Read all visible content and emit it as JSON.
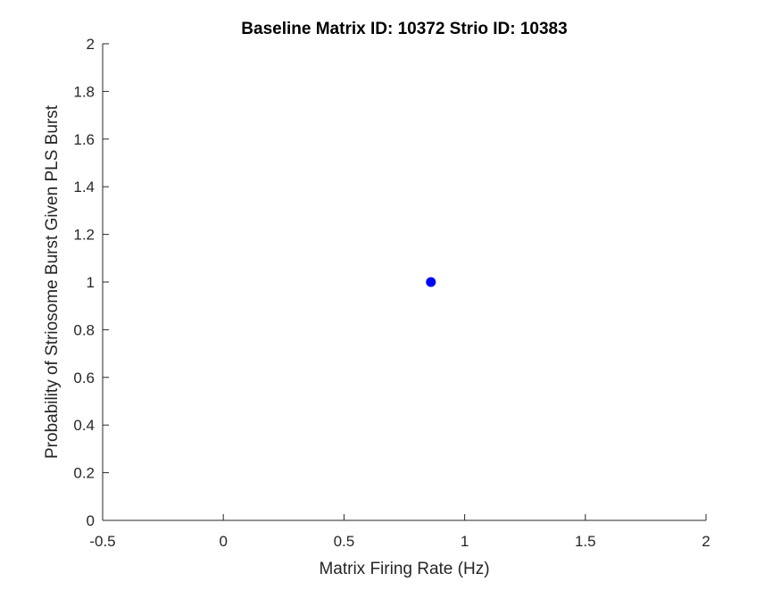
{
  "chart_data": {
    "type": "scatter",
    "title": "Baseline Matrix ID: 10372 Strio ID: 10383",
    "xlabel": "Matrix Firing Rate (Hz)",
    "ylabel": "Probability of Striosome Burst Given PLS Burst",
    "xlim": [
      -0.5,
      2
    ],
    "ylim": [
      0,
      2
    ],
    "xticks": [
      -0.5,
      0,
      0.5,
      1,
      1.5,
      2
    ],
    "xtick_labels": [
      "-0.5",
      "0",
      "0.5",
      "1",
      "1.5",
      "2"
    ],
    "yticks": [
      0,
      0.2,
      0.4,
      0.6,
      0.8,
      1,
      1.2,
      1.4,
      1.6,
      1.8,
      2
    ],
    "ytick_labels": [
      "0",
      "0.2",
      "0.4",
      "0.6",
      "0.8",
      "1",
      "1.2",
      "1.4",
      "1.6",
      "1.8",
      "2"
    ],
    "grid": false,
    "series": [
      {
        "points": [
          {
            "x": 0.86,
            "y": 1
          }
        ],
        "color": "#0000ff"
      }
    ]
  }
}
